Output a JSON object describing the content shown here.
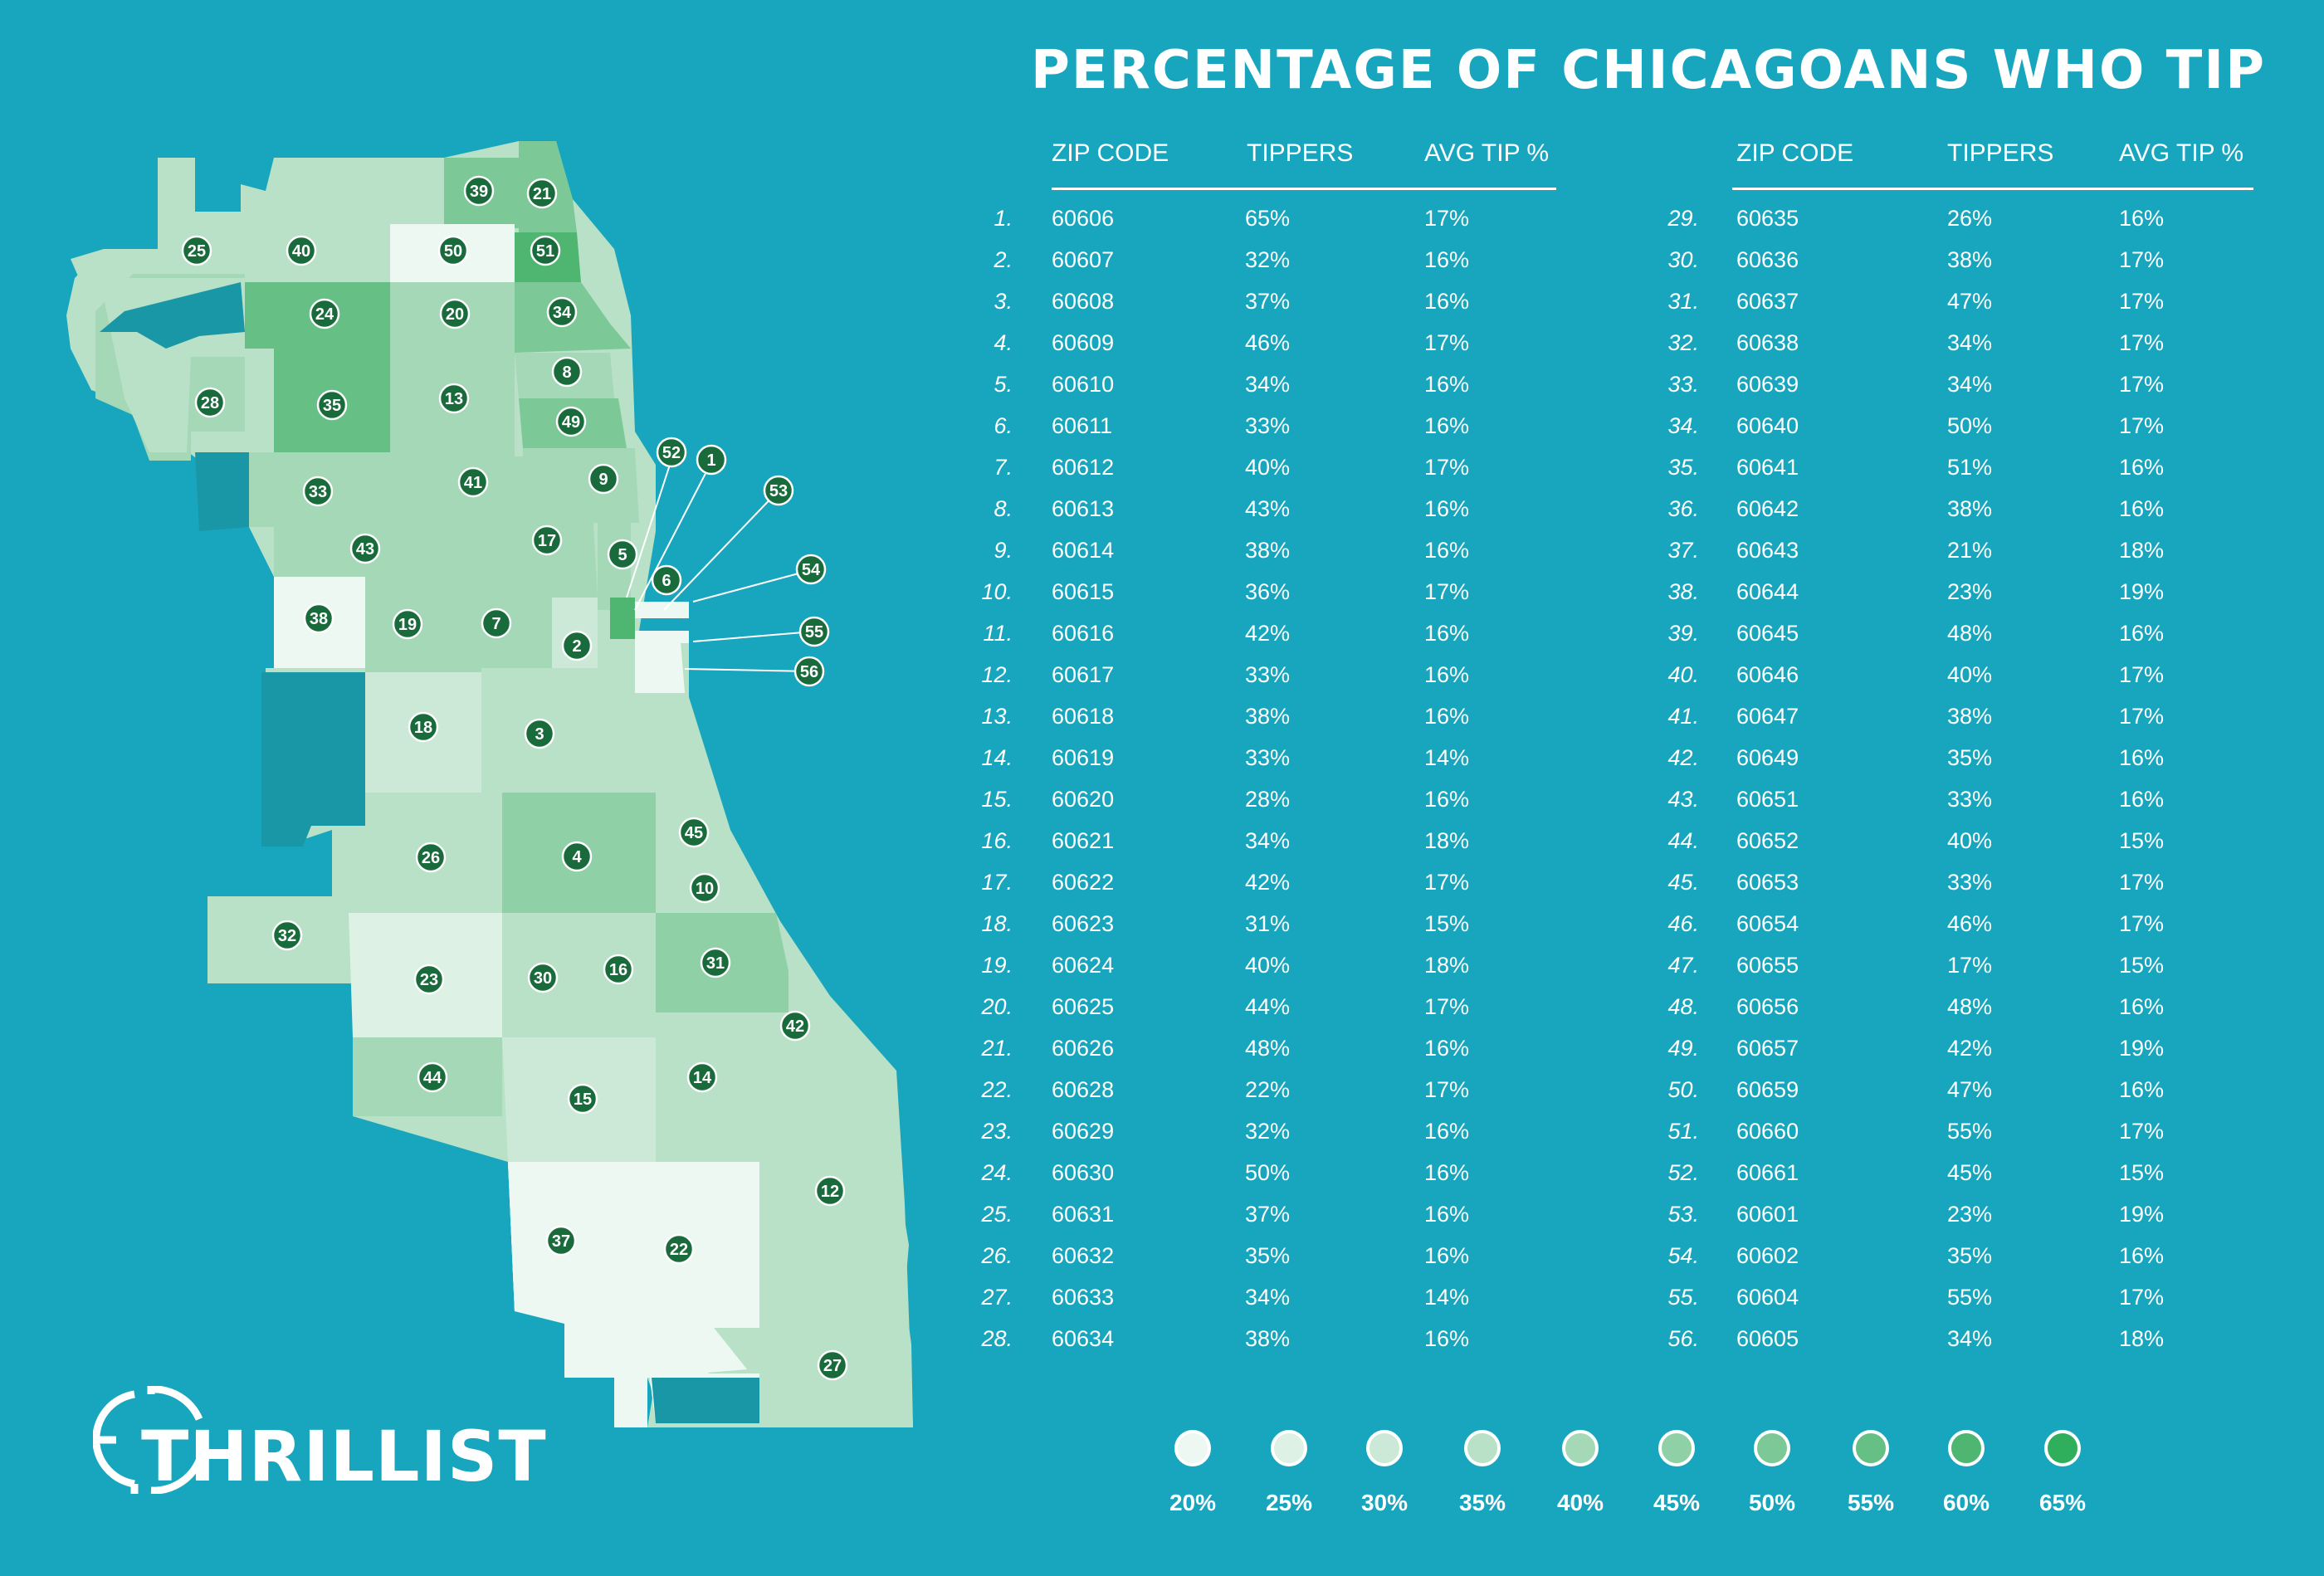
{
  "title": "PERCENTAGE OF CHICAGOANS WHO TIP",
  "columns": [
    "ZIP CODE",
    "TIPPERS",
    "AVG TIP %"
  ],
  "brand": "THRILLIST",
  "colors": {
    "background": "#17a6bd",
    "dark_region": "#1a97a6",
    "marker": "#1a6b3b",
    "scale": [
      "#eef8f2",
      "#ddf1e5",
      "#cbe9d6",
      "#b8e1c7",
      "#a4d8b7",
      "#90d0a7",
      "#7cc896",
      "#66bf85",
      "#4fb672",
      "#2fae5c"
    ]
  },
  "legend": [
    "20%",
    "25%",
    "30%",
    "35%",
    "40%",
    "45%",
    "50%",
    "55%",
    "60%",
    "65%"
  ],
  "rows": [
    {
      "rank": "1.",
      "zip": "60606",
      "tippers": "65%",
      "avg": "17%"
    },
    {
      "rank": "2.",
      "zip": "60607",
      "tippers": "32%",
      "avg": "16%"
    },
    {
      "rank": "3.",
      "zip": "60608",
      "tippers": "37%",
      "avg": "16%"
    },
    {
      "rank": "4.",
      "zip": "60609",
      "tippers": "46%",
      "avg": "17%"
    },
    {
      "rank": "5.",
      "zip": "60610",
      "tippers": "34%",
      "avg": "16%"
    },
    {
      "rank": "6.",
      "zip": "60611",
      "tippers": "33%",
      "avg": "16%"
    },
    {
      "rank": "7.",
      "zip": "60612",
      "tippers": "40%",
      "avg": "17%"
    },
    {
      "rank": "8.",
      "zip": "60613",
      "tippers": "43%",
      "avg": "16%"
    },
    {
      "rank": "9.",
      "zip": "60614",
      "tippers": "38%",
      "avg": "16%"
    },
    {
      "rank": "10.",
      "zip": "60615",
      "tippers": "36%",
      "avg": "17%"
    },
    {
      "rank": "11.",
      "zip": "60616",
      "tippers": "42%",
      "avg": "16%"
    },
    {
      "rank": "12.",
      "zip": "60617",
      "tippers": "33%",
      "avg": "16%"
    },
    {
      "rank": "13.",
      "zip": "60618",
      "tippers": "38%",
      "avg": "16%"
    },
    {
      "rank": "14.",
      "zip": "60619",
      "tippers": "33%",
      "avg": "14%"
    },
    {
      "rank": "15.",
      "zip": "60620",
      "tippers": "28%",
      "avg": "16%"
    },
    {
      "rank": "16.",
      "zip": "60621",
      "tippers": "34%",
      "avg": "18%"
    },
    {
      "rank": "17.",
      "zip": "60622",
      "tippers": "42%",
      "avg": "17%"
    },
    {
      "rank": "18.",
      "zip": "60623",
      "tippers": "31%",
      "avg": "15%"
    },
    {
      "rank": "19.",
      "zip": "60624",
      "tippers": "40%",
      "avg": "18%"
    },
    {
      "rank": "20.",
      "zip": "60625",
      "tippers": "44%",
      "avg": "17%"
    },
    {
      "rank": "21.",
      "zip": "60626",
      "tippers": "48%",
      "avg": "16%"
    },
    {
      "rank": "22.",
      "zip": "60628",
      "tippers": "22%",
      "avg": "17%"
    },
    {
      "rank": "23.",
      "zip": "60629",
      "tippers": "32%",
      "avg": "16%"
    },
    {
      "rank": "24.",
      "zip": "60630",
      "tippers": "50%",
      "avg": "16%"
    },
    {
      "rank": "25.",
      "zip": "60631",
      "tippers": "37%",
      "avg": "16%"
    },
    {
      "rank": "26.",
      "zip": "60632",
      "tippers": "35%",
      "avg": "16%"
    },
    {
      "rank": "27.",
      "zip": "60633",
      "tippers": "34%",
      "avg": "14%"
    },
    {
      "rank": "28.",
      "zip": "60634",
      "tippers": "38%",
      "avg": "16%"
    },
    {
      "rank": "29.",
      "zip": "60635",
      "tippers": "26%",
      "avg": "16%"
    },
    {
      "rank": "30.",
      "zip": "60636",
      "tippers": "38%",
      "avg": "17%"
    },
    {
      "rank": "31.",
      "zip": "60637",
      "tippers": "47%",
      "avg": "17%"
    },
    {
      "rank": "32.",
      "zip": "60638",
      "tippers": "34%",
      "avg": "17%"
    },
    {
      "rank": "33.",
      "zip": "60639",
      "tippers": "34%",
      "avg": "17%"
    },
    {
      "rank": "34.",
      "zip": "60640",
      "tippers": "50%",
      "avg": "17%"
    },
    {
      "rank": "35.",
      "zip": "60641",
      "tippers": "51%",
      "avg": "16%"
    },
    {
      "rank": "36.",
      "zip": "60642",
      "tippers": "38%",
      "avg": "16%"
    },
    {
      "rank": "37.",
      "zip": "60643",
      "tippers": "21%",
      "avg": "18%"
    },
    {
      "rank": "38.",
      "zip": "60644",
      "tippers": "23%",
      "avg": "19%"
    },
    {
      "rank": "39.",
      "zip": "60645",
      "tippers": "48%",
      "avg": "16%"
    },
    {
      "rank": "40.",
      "zip": "60646",
      "tippers": "40%",
      "avg": "17%"
    },
    {
      "rank": "41.",
      "zip": "60647",
      "tippers": "38%",
      "avg": "17%"
    },
    {
      "rank": "42.",
      "zip": "60649",
      "tippers": "35%",
      "avg": "16%"
    },
    {
      "rank": "43.",
      "zip": "60651",
      "tippers": "33%",
      "avg": "16%"
    },
    {
      "rank": "44.",
      "zip": "60652",
      "tippers": "40%",
      "avg": "15%"
    },
    {
      "rank": "45.",
      "zip": "60653",
      "tippers": "33%",
      "avg": "17%"
    },
    {
      "rank": "46.",
      "zip": "60654",
      "tippers": "46%",
      "avg": "17%"
    },
    {
      "rank": "47.",
      "zip": "60655",
      "tippers": "17%",
      "avg": "15%"
    },
    {
      "rank": "48.",
      "zip": "60656",
      "tippers": "48%",
      "avg": "16%"
    },
    {
      "rank": "49.",
      "zip": "60657",
      "tippers": "42%",
      "avg": "19%"
    },
    {
      "rank": "50.",
      "zip": "60659",
      "tippers": "47%",
      "avg": "16%"
    },
    {
      "rank": "51.",
      "zip": "60660",
      "tippers": "55%",
      "avg": "17%"
    },
    {
      "rank": "52.",
      "zip": "60661",
      "tippers": "45%",
      "avg": "15%"
    },
    {
      "rank": "53.",
      "zip": "60601",
      "tippers": "23%",
      "avg": "19%"
    },
    {
      "rank": "54.",
      "zip": "60602",
      "tippers": "35%",
      "avg": "16%"
    },
    {
      "rank": "55.",
      "zip": "60604",
      "tippers": "55%",
      "avg": "17%"
    },
    {
      "rank": "56.",
      "zip": "60605",
      "tippers": "34%",
      "avg": "18%"
    }
  ],
  "map_markers": [
    "1",
    "2",
    "3",
    "4",
    "5",
    "6",
    "7",
    "8",
    "9",
    "10",
    "12",
    "13",
    "14",
    "15",
    "16",
    "17",
    "18",
    "19",
    "20",
    "21",
    "22",
    "23",
    "24",
    "25",
    "26",
    "27",
    "28",
    "30",
    "31",
    "32",
    "33",
    "34",
    "35",
    "37",
    "38",
    "39",
    "40",
    "41",
    "42",
    "43",
    "44",
    "45",
    "49",
    "50",
    "51",
    "52",
    "53",
    "54",
    "55",
    "56"
  ]
}
